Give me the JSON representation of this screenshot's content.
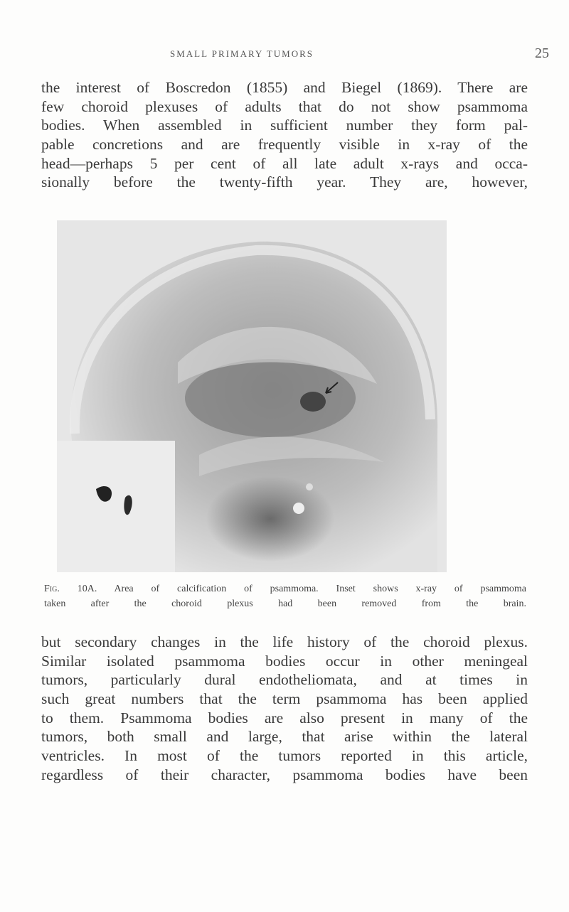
{
  "header": {
    "running_head": "SMALL PRIMARY TUMORS",
    "page_number": "25"
  },
  "paragraphs": [
    {
      "lines": [
        "the interest of Boscredon (1855) and Biegel (1869). There are",
        "few choroid plexuses of adults that do not show psammoma",
        "bodies. When assembled in sufficient number they form pal-",
        "pable concretions and are frequently visible in x-ray of the",
        "head—perhaps 5 per cent of all late adult x-rays and occa-",
        "sionally before the twenty-fifth year. They are, however,"
      ]
    },
    {
      "lines": [
        "but secondary changes in the life history of the choroid plexus.",
        "Similar isolated psammoma bodies occur in other meningeal",
        "tumors, particularly dural endotheliomata, and at times in",
        "such great numbers that the term psammoma has been applied",
        "to them. Psammoma bodies are also present in many of the",
        "tumors, both small and large, that arise within the lateral",
        "ventricles. In most of the tumors reported in this article,",
        "regardless of their character, psammoma bodies have been"
      ]
    }
  ],
  "figure": {
    "label": "Fig. 10A.",
    "caption_lines": [
      "Area of calcification of psammoma. Inset shows x-ray of psammoma",
      "taken after the choroid plexus had been removed from the brain."
    ]
  }
}
